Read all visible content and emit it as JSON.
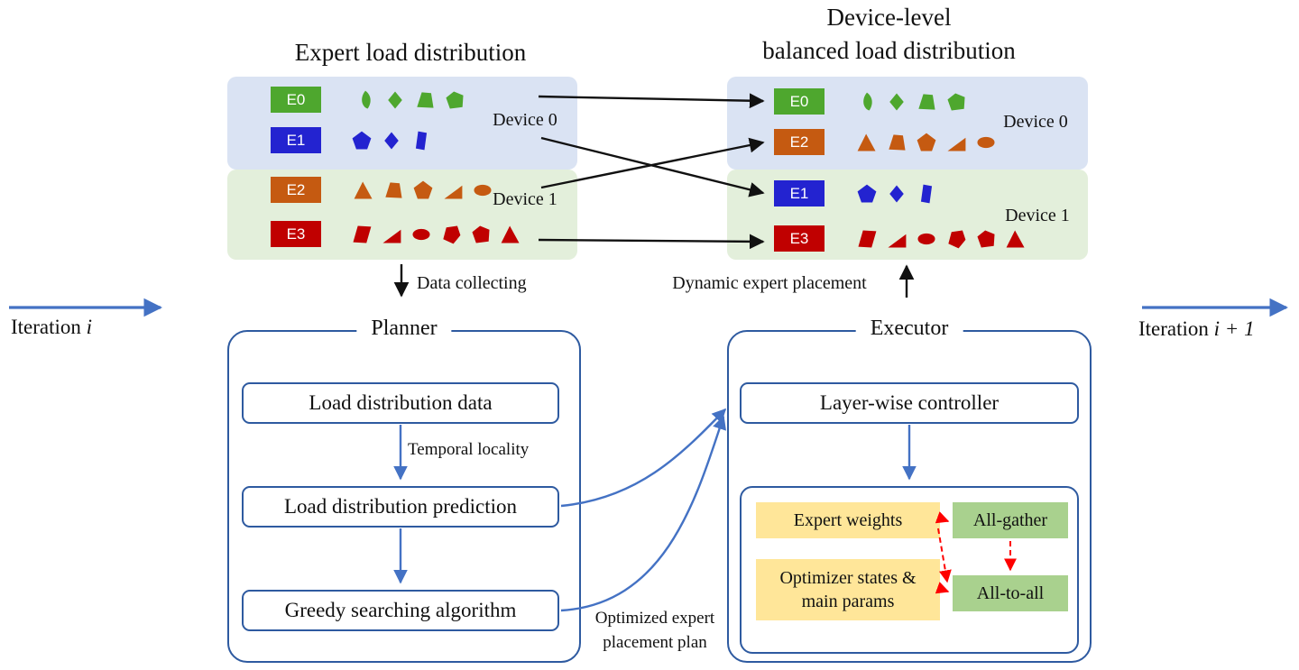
{
  "titles": {
    "left": "Expert load distribution",
    "right_line1": "Device-level",
    "right_line2": "balanced load distribution"
  },
  "iteration": {
    "left": {
      "prefix": "Iteration ",
      "var": "i"
    },
    "right": {
      "prefix": "Iteration ",
      "var": "i + 1"
    }
  },
  "colors": {
    "device_bg_blue": "#dae3f3",
    "device_bg_green": "#e3efdb",
    "expert_green": "#4ea72e",
    "expert_blue": "#2323d0",
    "expert_orange": "#c55a11",
    "expert_red": "#c00000",
    "box_border": "#2e5aa0",
    "arrow_blue": "#4472c4",
    "arrow_red": "#fe0000",
    "yellow_box": "#ffe699",
    "green_box": "#a9d18e"
  },
  "left_panel": {
    "devices": [
      {
        "label": "Device 0",
        "rows": [
          {
            "expert": "E0",
            "color": "#4ea72e",
            "shapes": [
              "teardrop",
              "diamond",
              "trapezoid",
              "pentagon2"
            ]
          },
          {
            "expert": "E1",
            "color": "#2323d0",
            "shapes": [
              "pentagon",
              "diamond",
              "bar"
            ]
          }
        ]
      },
      {
        "label": "Device 1",
        "rows": [
          {
            "expert": "E2",
            "color": "#c55a11",
            "shapes": [
              "triangle",
              "trapezoid",
              "pentagon",
              "rtriangle",
              "ellipse"
            ]
          },
          {
            "expert": "E3",
            "color": "#c00000",
            "shapes": [
              "parallelogram",
              "rtriangle",
              "ellipse",
              "blob",
              "pentagon2",
              "triangle"
            ]
          }
        ]
      }
    ]
  },
  "right_panel": {
    "devices": [
      {
        "label": "Device 0",
        "rows": [
          {
            "expert": "E0",
            "color": "#4ea72e",
            "shapes": [
              "teardrop",
              "diamond",
              "trapezoid",
              "pentagon2"
            ]
          },
          {
            "expert": "E2",
            "color": "#c55a11",
            "shapes": [
              "triangle",
              "trapezoid",
              "pentagon",
              "rtriangle",
              "ellipse"
            ]
          }
        ]
      },
      {
        "label": "Device 1",
        "rows": [
          {
            "expert": "E1",
            "color": "#2323d0",
            "shapes": [
              "pentagon",
              "diamond",
              "bar"
            ]
          },
          {
            "expert": "E3",
            "color": "#c00000",
            "shapes": [
              "parallelogram",
              "rtriangle",
              "ellipse",
              "blob",
              "pentagon2",
              "triangle"
            ]
          }
        ]
      }
    ]
  },
  "annotations": {
    "data_collecting": "Data collecting",
    "dynamic_expert_placement": "Dynamic expert placement",
    "temporal_locality": "Temporal locality",
    "optimized_plan_line1": "Optimized expert",
    "optimized_plan_line2": "placement plan"
  },
  "planner": {
    "title": "Planner",
    "boxes": [
      "Load distribution data",
      "Load distribution prediction",
      "Greedy searching algorithm"
    ]
  },
  "executor": {
    "title": "Executor",
    "controller": "Layer-wise controller",
    "expert_weights": "Expert weights",
    "optimizer_states": "Optimizer states & main params",
    "all_gather": "All-gather",
    "all_to_all": "All-to-all"
  }
}
